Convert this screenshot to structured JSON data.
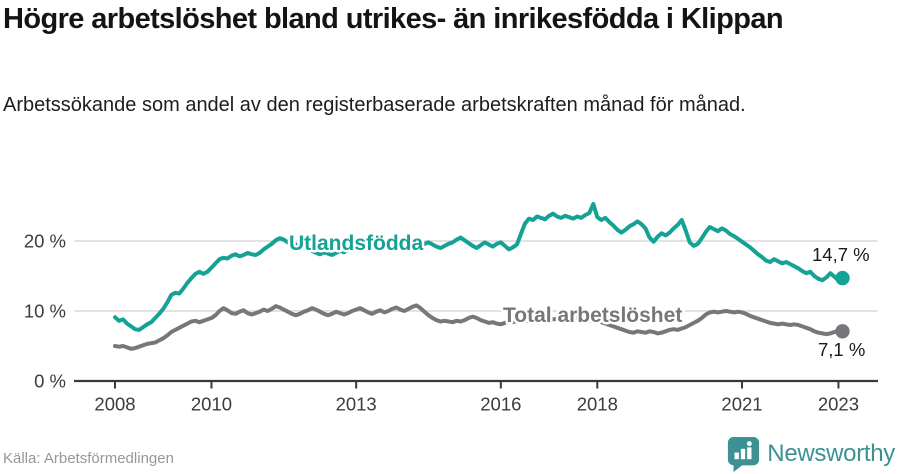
{
  "chart_data": {
    "type": "line",
    "title": "Högre arbetslöshet bland utrikes- än inrikesfödda i Klippan",
    "subtitle": "Arbetssökande som andel av den registerbaserade arbetskraften månad för månad.",
    "source": "Källa: Arbetsförmedlingen",
    "grid": true,
    "legend_position": "inline-labels-on-lines",
    "x_axis": {
      "start": "2008-01",
      "end": "2023-02",
      "frequency": "monthly",
      "tick_years": [
        2008,
        2010,
        2013,
        2016,
        2018,
        2021,
        2023
      ],
      "tick_labels": [
        "2008",
        "2010",
        "2013",
        "2016",
        "2018",
        "2021",
        "2023"
      ]
    },
    "y_axis": {
      "unit": "%",
      "ticks": [
        0,
        10,
        20
      ],
      "tick_labels": [
        "0 %",
        "10 %",
        "20 %"
      ],
      "range": [
        0,
        27
      ]
    },
    "series": [
      {
        "name": "Utlandsfödda",
        "color": "#14a294",
        "end_label": "14,7 %",
        "end_value": 14.7,
        "values": [
          9.1,
          8.6,
          8.8,
          8.2,
          7.8,
          7.4,
          7.3,
          7.7,
          8.1,
          8.4,
          9.0,
          9.6,
          10.3,
          11.2,
          12.3,
          12.6,
          12.5,
          13.2,
          14.0,
          14.7,
          15.3,
          15.6,
          15.3,
          15.6,
          16.2,
          16.8,
          17.4,
          17.6,
          17.5,
          17.9,
          18.1,
          17.8,
          18.0,
          18.3,
          18.1,
          18.0,
          18.3,
          18.8,
          19.2,
          19.6,
          20.1,
          20.4,
          20.2,
          19.8,
          19.6,
          19.5,
          19.3,
          19.0,
          18.8,
          18.6,
          18.3,
          18.1,
          18.4,
          18.2,
          18.0,
          18.3,
          18.6,
          18.4,
          18.7,
          19.0,
          19.2,
          19.0,
          19.3,
          19.1,
          18.9,
          19.2,
          19.4,
          19.2,
          19.0,
          19.3,
          19.1,
          19.4,
          19.6,
          19.4,
          19.7,
          19.5,
          19.3,
          19.6,
          19.8,
          19.5,
          19.2,
          19.0,
          19.3,
          19.6,
          19.8,
          20.2,
          20.5,
          20.1,
          19.7,
          19.3,
          19.0,
          19.4,
          19.8,
          19.5,
          19.2,
          19.6,
          19.8,
          19.3,
          18.8,
          19.1,
          19.5,
          21.0,
          22.5,
          23.2,
          23.0,
          23.5,
          23.3,
          23.1,
          23.6,
          23.9,
          23.5,
          23.3,
          23.6,
          23.4,
          23.2,
          23.5,
          23.3,
          23.7,
          24.0,
          25.3,
          23.4,
          23.0,
          23.3,
          22.7,
          22.2,
          21.6,
          21.2,
          21.6,
          22.1,
          22.4,
          22.8,
          22.4,
          21.8,
          20.5,
          19.9,
          20.6,
          21.1,
          20.8,
          21.2,
          21.8,
          22.3,
          23.0,
          21.5,
          19.8,
          19.3,
          19.6,
          20.4,
          21.3,
          22.0,
          21.7,
          21.4,
          21.8,
          21.5,
          21.0,
          20.7,
          20.3,
          19.9,
          19.5,
          19.1,
          18.6,
          18.1,
          17.7,
          17.2,
          17.0,
          17.4,
          17.1,
          16.8,
          17.0,
          16.7,
          16.4,
          16.1,
          15.7,
          15.4,
          15.6,
          15.0,
          14.6,
          14.4,
          14.8,
          15.4,
          14.9,
          14.4,
          14.7
        ]
      },
      {
        "name": "Total arbetslöshet",
        "color": "#77777b",
        "end_label": "7,1 %",
        "end_value": 7.1,
        "values": [
          5.0,
          4.9,
          5.0,
          4.8,
          4.6,
          4.7,
          4.9,
          5.1,
          5.3,
          5.4,
          5.5,
          5.8,
          6.1,
          6.5,
          7.0,
          7.3,
          7.6,
          7.9,
          8.2,
          8.5,
          8.6,
          8.4,
          8.6,
          8.8,
          9.0,
          9.4,
          10.0,
          10.4,
          10.1,
          9.7,
          9.6,
          9.9,
          10.1,
          9.7,
          9.5,
          9.7,
          9.9,
          10.2,
          10.0,
          10.3,
          10.7,
          10.5,
          10.2,
          9.9,
          9.6,
          9.4,
          9.6,
          9.9,
          10.1,
          10.4,
          10.2,
          9.9,
          9.6,
          9.4,
          9.6,
          9.9,
          9.7,
          9.5,
          9.7,
          10.0,
          10.2,
          10.4,
          10.1,
          9.8,
          9.6,
          9.9,
          10.1,
          9.8,
          10.0,
          10.3,
          10.5,
          10.2,
          10.0,
          10.3,
          10.6,
          10.8,
          10.4,
          9.9,
          9.4,
          9.0,
          8.7,
          8.5,
          8.6,
          8.5,
          8.4,
          8.6,
          8.5,
          8.7,
          9.0,
          9.2,
          9.0,
          8.7,
          8.5,
          8.3,
          8.4,
          8.2,
          8.1,
          8.3,
          8.5,
          8.4,
          8.6,
          8.8,
          8.7,
          8.5,
          8.6,
          8.8,
          8.7,
          8.9,
          9.0,
          8.8,
          8.9,
          9.1,
          9.0,
          8.8,
          8.9,
          9.1,
          9.0,
          8.8,
          8.6,
          8.8,
          8.6,
          8.4,
          8.2,
          8.0,
          7.8,
          7.6,
          7.4,
          7.2,
          7.0,
          6.9,
          7.1,
          7.0,
          6.9,
          7.1,
          7.0,
          6.8,
          6.9,
          7.1,
          7.3,
          7.4,
          7.3,
          7.5,
          7.7,
          8.0,
          8.3,
          8.6,
          9.0,
          9.5,
          9.8,
          9.9,
          9.8,
          9.9,
          10.0,
          9.9,
          9.8,
          9.9,
          9.8,
          9.6,
          9.3,
          9.1,
          8.9,
          8.7,
          8.5,
          8.3,
          8.2,
          8.1,
          8.2,
          8.1,
          8.0,
          8.1,
          8.0,
          7.8,
          7.6,
          7.4,
          7.1,
          6.9,
          6.8,
          6.7,
          6.8,
          7.0,
          7.2,
          7.1
        ]
      }
    ]
  },
  "branding": {
    "name": "Newsworthy",
    "logo_icon": "bar-chart-speech-bubble",
    "brand_color": "#3d9192"
  },
  "colors": {
    "foreign_born_line": "#14a294",
    "total_line": "#77777b",
    "gridline": "#d9d9d9",
    "axis": "#3a3a3a",
    "title_text": "#141414",
    "source_text": "#979797"
  }
}
